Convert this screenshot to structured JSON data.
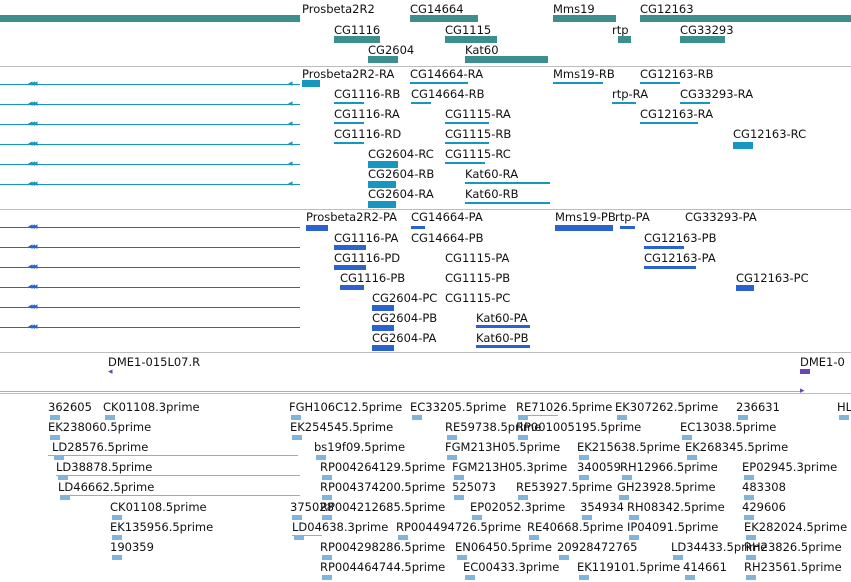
{
  "colors": {
    "gene": "#3c8f8d",
    "transcript_ra": "#1597bf",
    "transcript_pa": "#2a63cf",
    "clone": "#6a44b8",
    "est": "#7fb4dc",
    "separator": "#bdbdbd"
  },
  "tracks": {
    "genes": [
      {
        "name": "Prosbeta2R2"
      },
      {
        "name": "CG14664"
      },
      {
        "name": "Mms19"
      },
      {
        "name": "CG12163"
      },
      {
        "name": "CG1116"
      },
      {
        "name": "CG1115"
      },
      {
        "name": "rtp"
      },
      {
        "name": "CG33293"
      },
      {
        "name": "CG2604"
      },
      {
        "name": "Kat60"
      }
    ],
    "transcripts": [
      {
        "name": "Prosbeta2R2-RA"
      },
      {
        "name": "CG14664-RA"
      },
      {
        "name": "Mms19-RB"
      },
      {
        "name": "CG12163-RB"
      },
      {
        "name": "CG1116-RB"
      },
      {
        "name": "CG14664-RB"
      },
      {
        "name": "rtp-RA"
      },
      {
        "name": "CG33293-RA"
      },
      {
        "name": "CG1116-RA"
      },
      {
        "name": "CG1115-RA"
      },
      {
        "name": "CG12163-RA"
      },
      {
        "name": "CG1116-RD"
      },
      {
        "name": "CG1115-RB"
      },
      {
        "name": "CG12163-RC"
      },
      {
        "name": "CG2604-RC"
      },
      {
        "name": "CG1115-RC"
      },
      {
        "name": "CG2604-RB"
      },
      {
        "name": "Kat60-RA"
      },
      {
        "name": "CG2604-RA"
      },
      {
        "name": "Kat60-RB"
      }
    ],
    "proteins": [
      {
        "name": "Prosbeta2R2-PA"
      },
      {
        "name": "CG14664-PA"
      },
      {
        "name": "Mms19-PB"
      },
      {
        "name": "rtp-PA"
      },
      {
        "name": "CG33293-PA"
      },
      {
        "name": "CG1116-PA"
      },
      {
        "name": "CG14664-PB"
      },
      {
        "name": "CG12163-PB"
      },
      {
        "name": "CG1116-PD"
      },
      {
        "name": "CG1115-PA"
      },
      {
        "name": "CG12163-PA"
      },
      {
        "name": "CG1116-PB"
      },
      {
        "name": "CG1115-PB"
      },
      {
        "name": "CG12163-PC"
      },
      {
        "name": "CG2604-PC"
      },
      {
        "name": "CG1115-PC"
      },
      {
        "name": "CG2604-PB"
      },
      {
        "name": "Kat60-PA"
      },
      {
        "name": "CG2604-PA"
      },
      {
        "name": "Kat60-PB"
      }
    ],
    "clones": [
      {
        "name": "DME1-015L07.R"
      },
      {
        "name": "DME1-0"
      }
    ],
    "ests": [
      {
        "name": "362605"
      },
      {
        "name": "CK01108.3prime"
      },
      {
        "name": "FGH106C12.5prime"
      },
      {
        "name": "EC33205.5prime"
      },
      {
        "name": "RE71026.5prime"
      },
      {
        "name": "EK307262.5prime"
      },
      {
        "name": "236631"
      },
      {
        "name": "HL"
      },
      {
        "name": "EK238060.5prime"
      },
      {
        "name": "EK254545.5prime"
      },
      {
        "name": "RE59738.5prime"
      },
      {
        "name": "RP001005195.5prime"
      },
      {
        "name": "EC13038.5prime"
      },
      {
        "name": "LD28576.5prime"
      },
      {
        "name": "bs19f09.5prime"
      },
      {
        "name": "FGM213H05.5prime"
      },
      {
        "name": "EK215638.5prime"
      },
      {
        "name": "EK268345.5prime"
      },
      {
        "name": "LD38878.5prime"
      },
      {
        "name": "RP004264129.5prime"
      },
      {
        "name": "FGM213H05.3prime"
      },
      {
        "name": "340059"
      },
      {
        "name": "RH12966.5prime"
      },
      {
        "name": "EP02945.3prime"
      },
      {
        "name": "LD46662.5prime"
      },
      {
        "name": "RP004374200.5prime"
      },
      {
        "name": "525073"
      },
      {
        "name": "RE53927.5prime"
      },
      {
        "name": "GH23928.5prime"
      },
      {
        "name": "483308"
      },
      {
        "name": "CK01108.5prime"
      },
      {
        "name": "375028"
      },
      {
        "name": "RP004212685.5prime"
      },
      {
        "name": "EP02052.3prime"
      },
      {
        "name": "354934"
      },
      {
        "name": "RH08342.5prime"
      },
      {
        "name": "429606"
      },
      {
        "name": "EK135956.5prime"
      },
      {
        "name": "LD04638.3prime"
      },
      {
        "name": "RP004494726.5prime"
      },
      {
        "name": "RE40668.5prime"
      },
      {
        "name": "IP04091.5prime"
      },
      {
        "name": "EK282024.5prime"
      },
      {
        "name": "190359"
      },
      {
        "name": "RP004298286.5prime"
      },
      {
        "name": "EN06450.5prime"
      },
      {
        "name": "20928472765"
      },
      {
        "name": "LD34433.5prime"
      },
      {
        "name": "RH23826.5prime"
      },
      {
        "name": "RP004464744.5prime"
      },
      {
        "name": "EC00433.3prime"
      },
      {
        "name": "EK119101.5prime"
      },
      {
        "name": "414661"
      },
      {
        "name": "RH23561.5prime"
      }
    ]
  }
}
